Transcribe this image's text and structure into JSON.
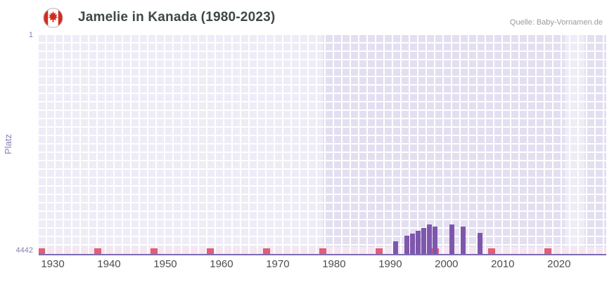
{
  "header": {
    "title": "Jamelie in Kanada (1980-2023)",
    "source": "Quelle: Baby-Vornamen.de"
  },
  "chart_data": {
    "type": "bar",
    "title": "Jamelie in Kanada (1980-2023)",
    "xlabel": "",
    "ylabel": "Platz",
    "y_axis": {
      "min": 1,
      "max": 4442,
      "inverted": true,
      "top_label": "1",
      "bottom_label": "4442"
    },
    "x_axis": {
      "range": [
        1927.5,
        2028.4
      ],
      "ticks": [
        1930,
        1940,
        1950,
        1960,
        1970,
        1980,
        1990,
        2000,
        2010,
        2020
      ]
    },
    "grid": true,
    "legend_position": "none",
    "series": [
      {
        "name": "Platz",
        "points": [
          {
            "year": 1991,
            "rank": 4180
          },
          {
            "year": 1993,
            "rank": 4070
          },
          {
            "year": 1994,
            "rank": 4030
          },
          {
            "year": 1995,
            "rank": 3970
          },
          {
            "year": 1996,
            "rank": 3910
          },
          {
            "year": 1997,
            "rank": 3850
          },
          {
            "year": 1998,
            "rank": 3890
          },
          {
            "year": 2001,
            "rank": 3845
          },
          {
            "year": 2003,
            "rank": 3880
          },
          {
            "year": 2006,
            "rank": 4020
          }
        ]
      }
    ],
    "decade_markers": [
      1928,
      1938,
      1948,
      1958,
      1968,
      1978,
      1988,
      1998,
      2008,
      2018
    ],
    "light_bands": [
      [
        1927.5,
        1978
      ],
      [
        2021,
        2024.5
      ]
    ],
    "colors": {
      "bar": "#7e57ad",
      "cell": "#e3dff1",
      "baseline_cell": "#f6e6f0",
      "marker": "#e05f74",
      "axis_line": "#7c6bb0",
      "axis_text": "#8b80b3",
      "tick_text": "#4d4d4d",
      "title_text": "#3c4946",
      "source_text": "#9a9a9a",
      "flag_red": "#d52b1e"
    }
  }
}
